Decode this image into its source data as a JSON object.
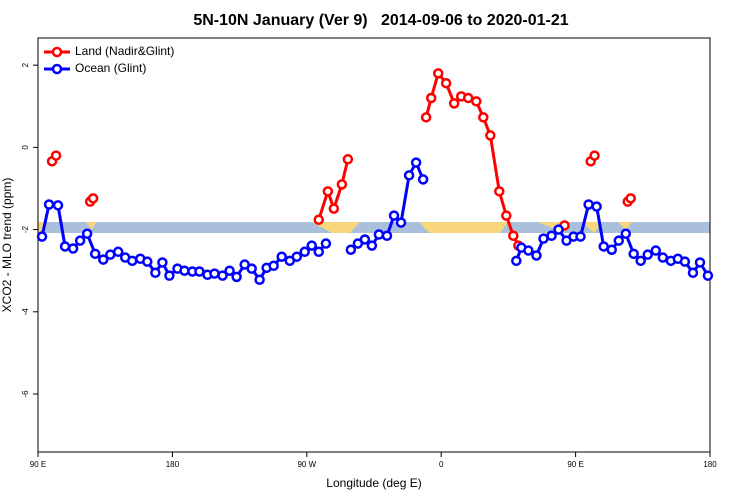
{
  "chart_data": {
    "type": "line",
    "title": "5N-10N January (Ver 9)   2014-09-06 to 2020-01-21",
    "x_label": "Longitude (deg E)",
    "y_label": "XCO2 - MLO trend (ppm)",
    "xlim": [
      90,
      540
    ],
    "xticks": [
      {
        "value": 90,
        "label": "90 E"
      },
      {
        "value": 180,
        "label": "180"
      },
      {
        "value": 270,
        "label": "90 W"
      },
      {
        "value": 360,
        "label": "0"
      },
      {
        "value": 450,
        "label": "90 E"
      },
      {
        "value": 540,
        "label": "180"
      }
    ],
    "ylim": [
      -7.41,
      2.66
    ],
    "yticks": [
      2,
      0,
      -2,
      -4,
      -6
    ],
    "legend": "top-left",
    "series": [
      {
        "name": "Land (Nadir&Glint)",
        "color": "#ff0000",
        "x": [
          99.4,
          102.1,
          null,
          124.9,
          126.9,
          null,
          278.0,
          284.1,
          288.1,
          293.5,
          297.5,
          null,
          349.9,
          353.3,
          358.0,
          363.3,
          368.7,
          373.4,
          378.1,
          383.5,
          388.2,
          392.9,
          398.9,
          403.6,
          408.3,
          411.7,
          null,
          442.6,
          null,
          460.1,
          462.7,
          null,
          484.9,
          486.9
        ],
        "values": [
          -0.34,
          -0.2,
          null,
          -1.32,
          -1.24,
          null,
          -1.76,
          -1.07,
          -1.49,
          -0.9,
          -0.29,
          null,
          0.73,
          1.2,
          1.8,
          1.56,
          1.07,
          1.24,
          1.2,
          1.12,
          0.73,
          0.29,
          -1.07,
          -1.66,
          -2.15,
          -2.39,
          null,
          -1.9,
          null,
          -0.34,
          -0.2,
          null,
          -1.32,
          -1.24
        ]
      },
      {
        "name": "Ocean (Glint)",
        "color": "#0000ff",
        "x": [
          92.7,
          97.4,
          103.4,
          108.1,
          113.5,
          118.2,
          122.9,
          128.3,
          133.7,
          138.4,
          143.7,
          148.4,
          153.1,
          158.5,
          163.2,
          168.6,
          173.3,
          178.0,
          183.4,
          188.1,
          193.4,
          198.1,
          203.5,
          208.2,
          213.6,
          218.3,
          223.0,
          228.4,
          233.1,
          238.4,
          243.1,
          247.8,
          253.2,
          258.6,
          263.3,
          268.6,
          273.3,
          278.0,
          282.8,
          null,
          299.5,
          304.2,
          308.9,
          313.6,
          318.3,
          323.7,
          328.4,
          333.1,
          338.5,
          343.2,
          347.9,
          null,
          410.3,
          413.7,
          418.4,
          423.8,
          428.5,
          433.9,
          438.6,
          443.9,
          448.6,
          453.3,
          458.7,
          464.1,
          468.8,
          474.2,
          478.9,
          483.6,
          488.9,
          493.6,
          498.3,
          503.7,
          508.4,
          513.8,
          518.5,
          523.2,
          528.6,
          533.3,
          538.6
        ],
        "values": [
          -2.17,
          -1.39,
          -1.41,
          -2.41,
          -2.46,
          -2.27,
          -2.1,
          -2.59,
          -2.73,
          -2.61,
          -2.54,
          -2.68,
          -2.76,
          -2.71,
          -2.78,
          -3.05,
          -2.8,
          -3.12,
          -2.95,
          -3.0,
          -3.02,
          -3.02,
          -3.1,
          -3.07,
          -3.12,
          -3.0,
          -3.15,
          -2.85,
          -2.95,
          -3.22,
          -2.93,
          -2.88,
          -2.66,
          -2.76,
          -2.66,
          -2.54,
          -2.39,
          -2.54,
          -2.34,
          null,
          -2.49,
          -2.34,
          -2.24,
          -2.39,
          -2.12,
          -2.15,
          -1.66,
          -1.83,
          -0.68,
          -0.37,
          -0.78,
          null,
          -2.76,
          -2.44,
          -2.51,
          -2.63,
          -2.22,
          -2.15,
          -2.0,
          -2.27,
          -2.17,
          -2.17,
          -1.39,
          -1.44,
          -2.41,
          -2.49,
          -2.27,
          -2.1,
          -2.59,
          -2.76,
          -2.61,
          -2.51,
          -2.68,
          -2.76,
          -2.71,
          -2.78,
          -3.05,
          -2.8,
          -3.12
        ]
      }
    ]
  }
}
